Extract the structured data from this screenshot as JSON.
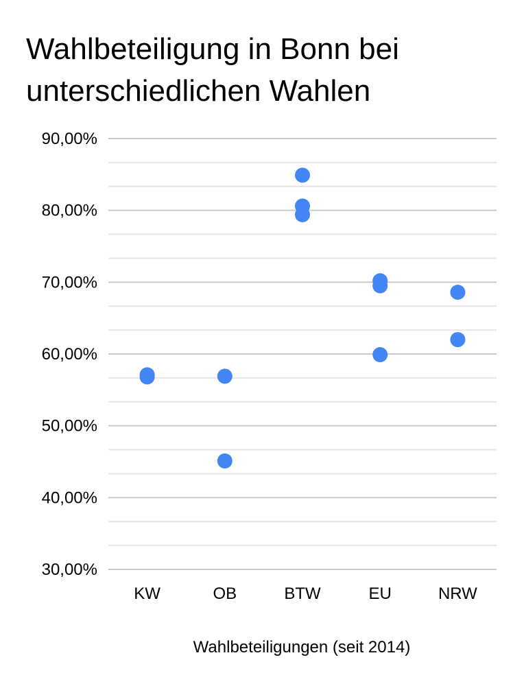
{
  "chart_data": {
    "type": "scatter",
    "title_lines": [
      "Wahlbeteiligung in Bonn bei",
      "unterschiedlichen Wahlen"
    ],
    "xlabel": "Wahlbeteiligungen (seit 2014)",
    "ylabel": "",
    "categories": [
      "KW",
      "OB",
      "BTW",
      "EU",
      "NRW"
    ],
    "ylim": [
      30,
      90
    ],
    "y_major_ticks": [
      30,
      40,
      50,
      60,
      70,
      80,
      90
    ],
    "y_tick_labels": [
      "30,00%",
      "40,00%",
      "50,00%",
      "60,00%",
      "70,00%",
      "80,00%",
      "90,00%"
    ],
    "y_minor_step": 3.33,
    "grid": true,
    "legend": "none",
    "points": [
      {
        "category": "KW",
        "value": 57.1
      },
      {
        "category": "KW",
        "value": 56.8
      },
      {
        "category": "OB",
        "value": 56.9
      },
      {
        "category": "OB",
        "value": 45.1
      },
      {
        "category": "BTW",
        "value": 84.9
      },
      {
        "category": "BTW",
        "value": 80.6
      },
      {
        "category": "BTW",
        "value": 79.4
      },
      {
        "category": "EU",
        "value": 70.2
      },
      {
        "category": "EU",
        "value": 69.5
      },
      {
        "category": "EU",
        "value": 59.9
      },
      {
        "category": "NRW",
        "value": 68.6
      },
      {
        "category": "NRW",
        "value": 62.0
      }
    ],
    "colors": {
      "point": "#4285F4",
      "major_grid": "#c9c9c9",
      "minor_grid": "#e6e6e6"
    }
  }
}
